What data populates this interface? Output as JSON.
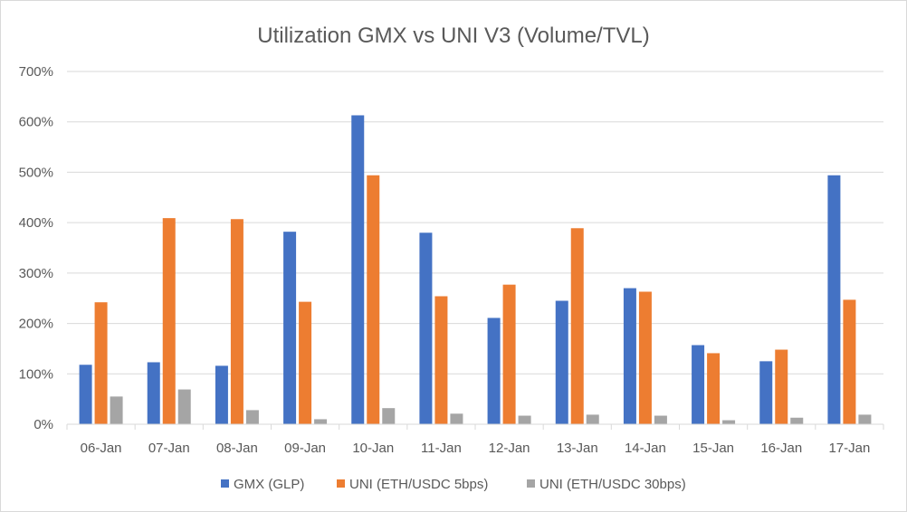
{
  "chart_data": {
    "type": "bar",
    "title": "Utilization GMX vs UNI V3 (Volume/TVL)",
    "xlabel": "",
    "ylabel": "",
    "ylim": [
      0,
      700
    ],
    "yticks": [
      "0%",
      "100%",
      "200%",
      "300%",
      "400%",
      "500%",
      "600%",
      "700%"
    ],
    "ytick_values": [
      0,
      100,
      200,
      300,
      400,
      500,
      600,
      700
    ],
    "grid": true,
    "legend_position": "bottom",
    "categories": [
      "06-Jan",
      "07-Jan",
      "08-Jan",
      "09-Jan",
      "10-Jan",
      "11-Jan",
      "12-Jan",
      "13-Jan",
      "14-Jan",
      "15-Jan",
      "16-Jan",
      "17-Jan"
    ],
    "series": [
      {
        "name": "GMX (GLP)",
        "color": "#4472c4",
        "values": [
          118,
          123,
          116,
          382,
          613,
          380,
          211,
          245,
          270,
          157,
          125,
          494
        ]
      },
      {
        "name": "UNI (ETH/USDC 5bps)",
        "color": "#ed7d31",
        "values": [
          242,
          409,
          407,
          243,
          494,
          254,
          277,
          389,
          263,
          141,
          148,
          247
        ]
      },
      {
        "name": "UNI (ETH/USDC 30bps)",
        "color": "#a5a5a5",
        "values": [
          55,
          69,
          28,
          10,
          32,
          21,
          17,
          19,
          17,
          8,
          13,
          19
        ]
      }
    ]
  }
}
